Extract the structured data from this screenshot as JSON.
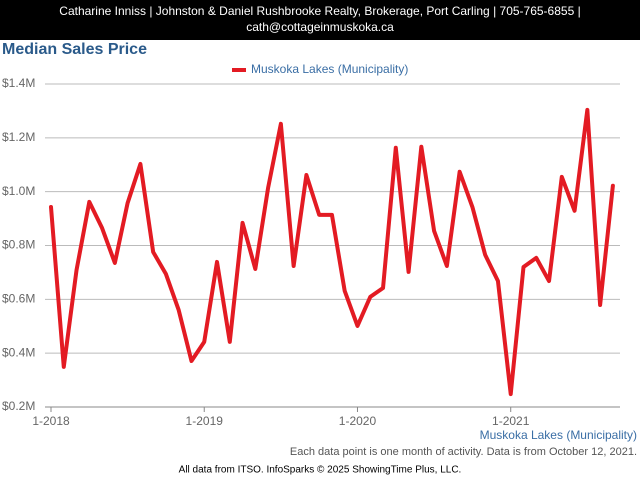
{
  "header": {
    "lines": [
      "Catharine Inniss | Johnston & Daniel Rushbrooke Realty, Brokerage, Port Carling | 705-765-6855 |",
      "cath@cottageinmuskoka.ca"
    ]
  },
  "chart_data": {
    "type": "line",
    "title": "Median Sales Price",
    "categories": [
      "1-2018",
      null,
      null,
      null,
      null,
      null,
      null,
      null,
      null,
      null,
      null,
      null,
      "1-2019",
      null,
      null,
      null,
      null,
      null,
      null,
      null,
      null,
      null,
      null,
      null,
      "1-2020",
      null,
      null,
      null,
      null,
      null,
      null,
      null,
      null,
      null,
      null,
      null,
      "1-2021",
      null,
      null,
      null,
      null,
      null,
      null,
      null,
      null
    ],
    "series": [
      {
        "name": "Muskoka Lakes (Municipality)",
        "color": "#e31b23",
        "values": [
          943000,
          349000,
          709000,
          962000,
          865000,
          735000,
          958000,
          1103000,
          776000,
          694000,
          560000,
          371000,
          442000,
          739000,
          442000,
          884000,
          713000,
          1014000,
          1252000,
          724000,
          1062000,
          914000,
          914000,
          631000,
          501000,
          609000,
          642000,
          1163000,
          702000,
          1167000,
          854000,
          724000,
          1074000,
          943000,
          765000,
          668000,
          248000,
          720000,
          754000,
          668000,
          1055000,
          929000,
          1304000,
          579000,
          1022000
        ]
      }
    ],
    "ylim": [
      200000,
      1400000
    ],
    "yticks": [
      {
        "value": 200000,
        "label": "$0.2M"
      },
      {
        "value": 400000,
        "label": "$0.4M"
      },
      {
        "value": 600000,
        "label": "$0.6M"
      },
      {
        "value": 800000,
        "label": "$0.8M"
      },
      {
        "value": 1000000,
        "label": "$1.0M"
      },
      {
        "value": 1200000,
        "label": "$1.2M"
      },
      {
        "value": 1400000,
        "label": "$1.4M"
      }
    ],
    "grid": true,
    "legend": "top",
    "x_label": "Muskoka Lakes (Municipality)",
    "note": "Each data point is one month of activity. Data is from October 12, 2021.",
    "source": "All data from ITSO. InfoSparks © 2025 ShowingTime Plus, LLC."
  }
}
